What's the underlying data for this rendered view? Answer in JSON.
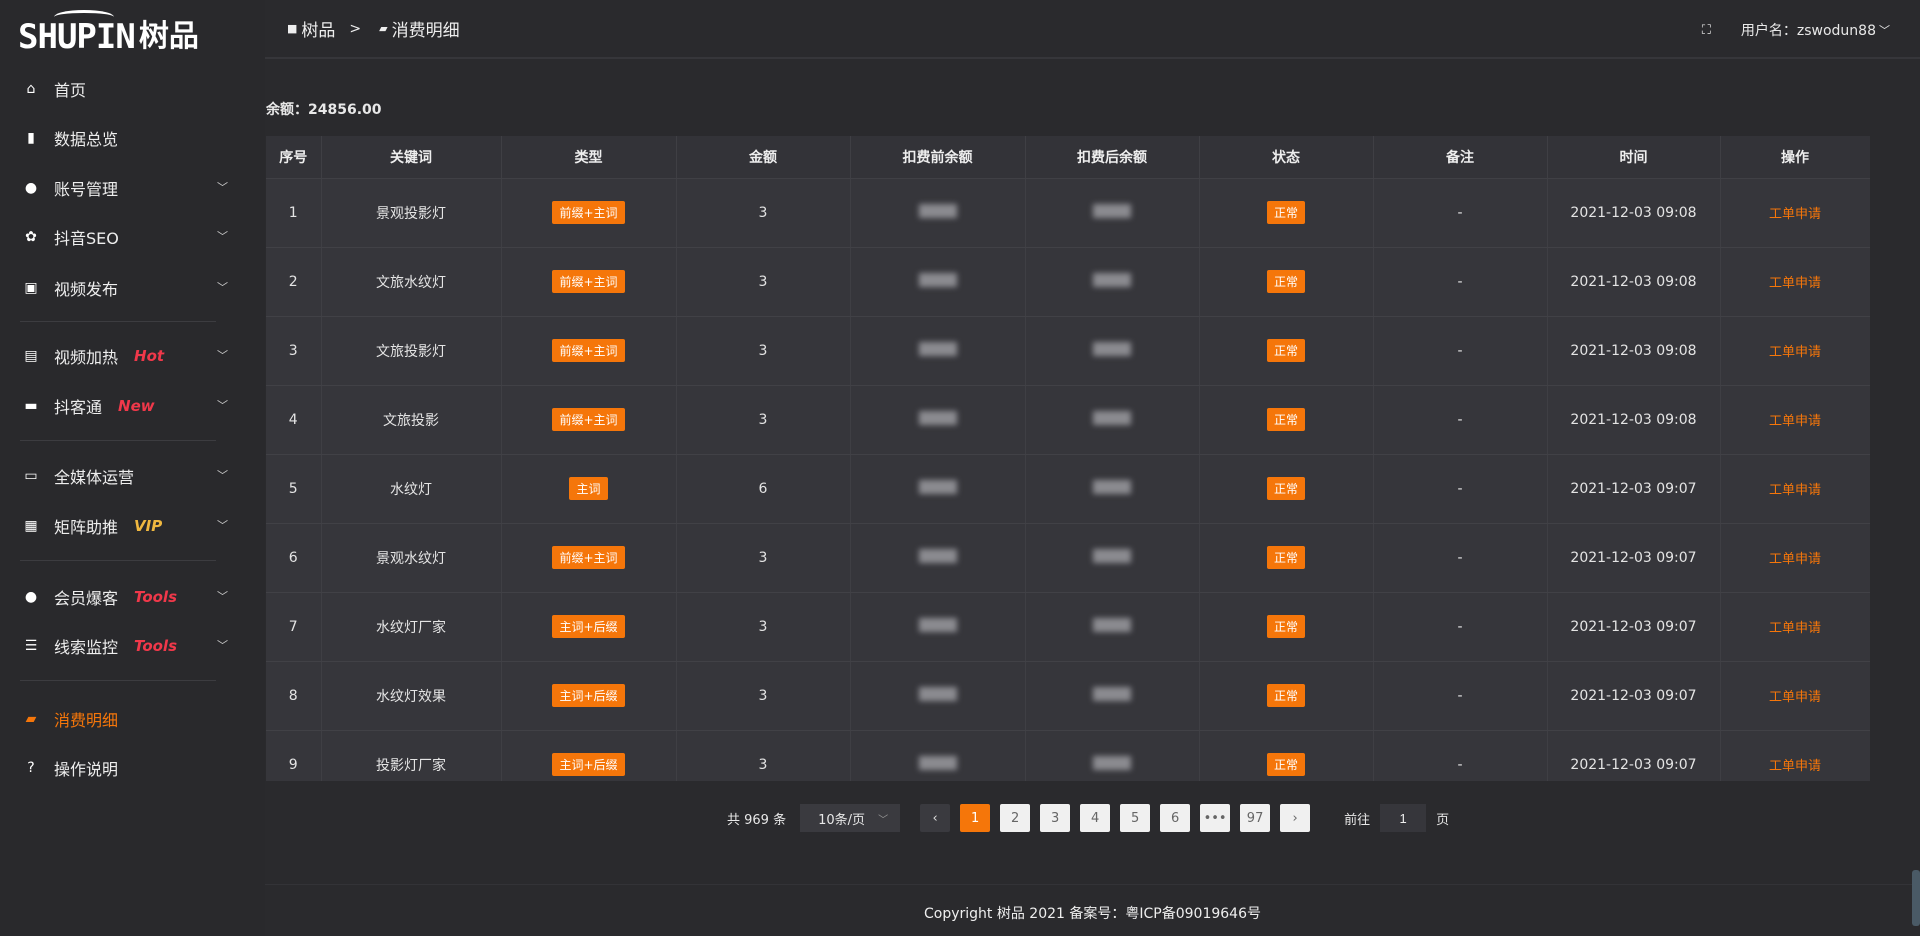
{
  "app": {
    "logo_en": "SHUPIN",
    "logo_cn": "树品"
  },
  "sidebar": {
    "items": [
      {
        "label": "首页",
        "icon": "home-icon",
        "glyph": "⌂"
      },
      {
        "label": "数据总览",
        "icon": "bar-chart-icon",
        "glyph": "▮"
      },
      {
        "label": "账号管理",
        "icon": "user-icon",
        "glyph": "●"
      },
      {
        "label": "抖音SEO",
        "icon": "gear-icon",
        "glyph": "✿"
      },
      {
        "label": "视频发布",
        "icon": "camera-icon",
        "glyph": "▣"
      },
      {
        "label": "视频加热",
        "icon": "billboard-icon",
        "glyph": "▤",
        "tag": "Hot",
        "tag_color": "#f0384a"
      },
      {
        "label": "抖客通",
        "icon": "chat-icon",
        "glyph": "▬",
        "tag": "New",
        "tag_color": "#f0384a"
      },
      {
        "label": "全媒体运营",
        "icon": "monitor-icon",
        "glyph": "▭"
      },
      {
        "label": "矩阵助推",
        "icon": "grid-icon",
        "glyph": "▦",
        "tag": "VIP",
        "tag_color": "#f0b840"
      },
      {
        "label": "会员爆客",
        "icon": "user-icon",
        "glyph": "●",
        "tag": "Tools",
        "tag_color": "#f0384a"
      },
      {
        "label": "线索监控",
        "icon": "sliders-icon",
        "glyph": "☰",
        "tag": "Tools",
        "tag_color": "#f0384a"
      },
      {
        "label": "消费明细",
        "icon": "wallet-icon",
        "glyph": "▰"
      },
      {
        "label": "操作说明",
        "icon": "help-icon",
        "glyph": "?"
      }
    ]
  },
  "header": {
    "breadcrumb": [
      "树品",
      "消费明细"
    ],
    "separator": ">",
    "user_label": "用户名：zswodun88"
  },
  "balance": "余额：24856.00",
  "table": {
    "columns": [
      "序号",
      "关键词",
      "类型",
      "金额",
      "扣费前余额",
      "扣费后余额",
      "状态",
      "备注",
      "时间",
      "操作"
    ],
    "rows": [
      {
        "no": "1",
        "keyword": "景观投影灯",
        "type": "前缀+主词",
        "amount": "3",
        "status": "正常",
        "note": "-",
        "time": "2021-12-03 09:08",
        "action": "工单申请"
      },
      {
        "no": "2",
        "keyword": "文旅水纹灯",
        "type": "前缀+主词",
        "amount": "3",
        "status": "正常",
        "note": "-",
        "time": "2021-12-03 09:08",
        "action": "工单申请"
      },
      {
        "no": "3",
        "keyword": "文旅投影灯",
        "type": "前缀+主词",
        "amount": "3",
        "status": "正常",
        "note": "-",
        "time": "2021-12-03 09:08",
        "action": "工单申请"
      },
      {
        "no": "4",
        "keyword": "文旅投影",
        "type": "前缀+主词",
        "amount": "3",
        "status": "正常",
        "note": "-",
        "time": "2021-12-03 09:08",
        "action": "工单申请"
      },
      {
        "no": "5",
        "keyword": "水纹灯",
        "type": "主词",
        "amount": "6",
        "status": "正常",
        "note": "-",
        "time": "2021-12-03 09:07",
        "action": "工单申请"
      },
      {
        "no": "6",
        "keyword": "景观水纹灯",
        "type": "前缀+主词",
        "amount": "3",
        "status": "正常",
        "note": "-",
        "time": "2021-12-03 09:07",
        "action": "工单申请"
      },
      {
        "no": "7",
        "keyword": "水纹灯厂家",
        "type": "主词+后缀",
        "amount": "3",
        "status": "正常",
        "note": "-",
        "time": "2021-12-03 09:07",
        "action": "工单申请"
      },
      {
        "no": "8",
        "keyword": "水纹灯效果",
        "type": "主词+后缀",
        "amount": "3",
        "status": "正常",
        "note": "-",
        "time": "2021-12-03 09:07",
        "action": "工单申请"
      },
      {
        "no": "9",
        "keyword": "投影灯厂家",
        "type": "主词+后缀",
        "amount": "3",
        "status": "正常",
        "note": "-",
        "time": "2021-12-03 09:07",
        "action": "工单申请"
      }
    ]
  },
  "pagination": {
    "total": "共 969 条",
    "page_size": "10条/页",
    "pages": [
      "1",
      "2",
      "3",
      "4",
      "5",
      "6",
      "•••",
      "97"
    ],
    "current": "1",
    "goto_label": "前往",
    "goto_value": "1",
    "page_suffix": "页"
  },
  "footer": "Copyright 树品 2021 备案号：粤ICP备09019646号",
  "colors": {
    "accent": "#f5760a",
    "background": "#2a2a2d",
    "table": "#36363b"
  }
}
